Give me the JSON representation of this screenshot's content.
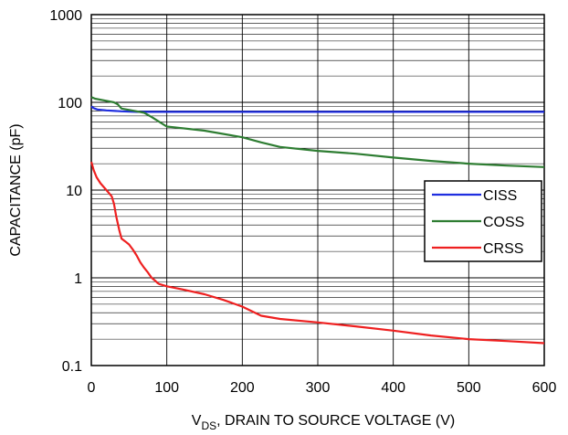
{
  "chart_data": {
    "type": "line",
    "title": "",
    "xlabel": {
      "main": "V",
      "subscript": "DS",
      "rest": ", DRAIN TO SOURCE VOLTAGE (V)"
    },
    "ylabel": "CAPACITANCE (pF)",
    "xlim": [
      0,
      600
    ],
    "ylim": [
      0.1,
      1000
    ],
    "yscale": "log",
    "grid": true,
    "legend_placement": "right",
    "x_ticks": [
      {
        "value": 0,
        "label": "0"
      },
      {
        "value": 100,
        "label": "100"
      },
      {
        "value": 200,
        "label": "200"
      },
      {
        "value": 300,
        "label": "300"
      },
      {
        "value": 400,
        "label": "400"
      },
      {
        "value": 500,
        "label": "500"
      },
      {
        "value": 600,
        "label": "600"
      }
    ],
    "y_ticks": [
      {
        "value": 0.1,
        "label": "0.1"
      },
      {
        "value": 1,
        "label": "1"
      },
      {
        "value": 10,
        "label": "10"
      },
      {
        "value": 100,
        "label": "100"
      },
      {
        "value": 1000,
        "label": "1000"
      }
    ],
    "series": [
      {
        "name": "CISS",
        "color": "#1f2ee0",
        "x": [
          0,
          3,
          8,
          20,
          40,
          60,
          80,
          100,
          150,
          200,
          300,
          400,
          500,
          600
        ],
        "y": [
          90,
          86,
          83,
          81,
          79,
          78,
          78,
          78,
          78,
          78,
          78,
          78,
          78,
          78
        ]
      },
      {
        "name": "COSS",
        "color": "#2e7d32",
        "x": [
          0,
          5,
          15,
          30,
          35,
          40,
          50,
          60,
          70,
          80,
          90,
          100,
          110,
          150,
          200,
          225,
          250,
          300,
          350,
          400,
          450,
          500,
          550,
          600
        ],
        "y": [
          115,
          110,
          106,
          100,
          95,
          85,
          82,
          79,
          76,
          68,
          60,
          53,
          52,
          47.5,
          40,
          35,
          31,
          28,
          26,
          23.5,
          21.5,
          20,
          19,
          18.3
        ]
      },
      {
        "name": "CRSS",
        "color": "#ee2020",
        "x": [
          0,
          3,
          7,
          12,
          20,
          27,
          30,
          33,
          37,
          40,
          45,
          50,
          55,
          60,
          65,
          70,
          75,
          80,
          85,
          88,
          90,
          100,
          120,
          150,
          175,
          200,
          225,
          250,
          300,
          350,
          400,
          450,
          500,
          550,
          600
        ],
        "y": [
          21,
          17,
          14,
          12,
          10,
          8.5,
          7,
          5,
          3.5,
          2.8,
          2.6,
          2.4,
          2.1,
          1.8,
          1.5,
          1.3,
          1.15,
          1.0,
          0.92,
          0.87,
          0.85,
          0.8,
          0.74,
          0.65,
          0.56,
          0.47,
          0.37,
          0.34,
          0.31,
          0.28,
          0.25,
          0.22,
          0.2,
          0.19,
          0.18
        ]
      }
    ]
  }
}
